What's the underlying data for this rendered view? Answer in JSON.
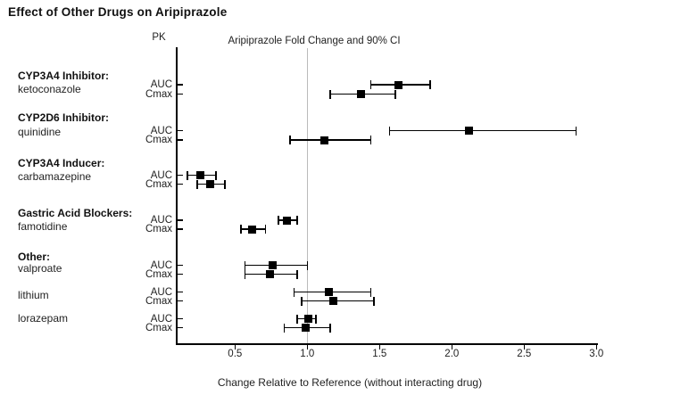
{
  "chart_data": {
    "type": "forest",
    "title": "Effect of Other Drugs on Aripiprazole",
    "column_headers": {
      "pk": "PK",
      "ci": "Aripiprazole Fold Change and 90% CI"
    },
    "xlabel": "Change Relative to Reference (without interacting drug)",
    "x_tick_labels": [
      "0.5",
      "1.0",
      "1.5",
      "2.0",
      "2.5",
      "3.0"
    ],
    "x_tick_values": [
      0.5,
      1.0,
      1.5,
      2.0,
      2.5,
      3.0
    ],
    "xlim": [
      0.09,
      3.0
    ],
    "reference_value": 1.0,
    "ci_level": "90% CI",
    "grid": false,
    "legend": "none",
    "colors": {
      "marker": "#000000",
      "ci_line": "#000000",
      "reference_line": "#bbbbbb",
      "axis": "#000000",
      "text": "#1a1a1a"
    },
    "groups": [
      {
        "label": "CYP3A4 Inhibitor:",
        "drug": "ketoconazole",
        "rows": [
          {
            "pk": "AUC",
            "value": 1.63,
            "ci_low": 1.44,
            "ci_high": 1.85
          },
          {
            "pk": "Cmax",
            "value": 1.37,
            "ci_low": 1.16,
            "ci_high": 1.61
          }
        ]
      },
      {
        "label": "CYP2D6 Inhibitor:",
        "drug": "quinidine",
        "rows": [
          {
            "pk": "AUC",
            "value": 2.12,
            "ci_low": 1.57,
            "ci_high": 2.86
          },
          {
            "pk": "Cmax",
            "value": 1.12,
            "ci_low": 0.88,
            "ci_high": 1.44
          }
        ]
      },
      {
        "label": "CYP3A4 Inducer:",
        "drug": "carbamazepine",
        "rows": [
          {
            "pk": "AUC",
            "value": 0.26,
            "ci_low": 0.17,
            "ci_high": 0.37
          },
          {
            "pk": "Cmax",
            "value": 0.33,
            "ci_low": 0.24,
            "ci_high": 0.43
          }
        ]
      },
      {
        "label": "Gastric Acid Blockers:",
        "drug": "famotidine",
        "rows": [
          {
            "pk": "AUC",
            "value": 0.86,
            "ci_low": 0.8,
            "ci_high": 0.93
          },
          {
            "pk": "Cmax",
            "value": 0.62,
            "ci_low": 0.54,
            "ci_high": 0.71
          }
        ]
      },
      {
        "label": "Other:",
        "drug": "valproate",
        "rows": [
          {
            "pk": "AUC",
            "value": 0.76,
            "ci_low": 0.57,
            "ci_high": 1.0
          },
          {
            "pk": "Cmax",
            "value": 0.74,
            "ci_low": 0.57,
            "ci_high": 0.93
          }
        ]
      },
      {
        "label": null,
        "drug": "lithium",
        "rows": [
          {
            "pk": "AUC",
            "value": 1.15,
            "ci_low": 0.91,
            "ci_high": 1.44
          },
          {
            "pk": "Cmax",
            "value": 1.18,
            "ci_low": 0.96,
            "ci_high": 1.46
          }
        ]
      },
      {
        "label": null,
        "drug": "lorazepam",
        "rows": [
          {
            "pk": "AUC",
            "value": 1.01,
            "ci_low": 0.93,
            "ci_high": 1.06
          },
          {
            "pk": "Cmax",
            "value": 0.99,
            "ci_low": 0.84,
            "ci_high": 1.16
          }
        ]
      }
    ]
  }
}
